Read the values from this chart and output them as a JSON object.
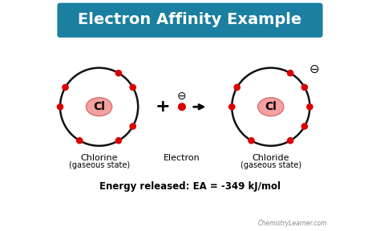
{
  "title": "Electron Affinity Example",
  "title_bg": "#1a7fa0",
  "title_color": "#ffffff",
  "bg_color": "#ffffff",
  "atom_nucleus_color": "#f4a0a0",
  "atom_nucleus_edge": "#d06060",
  "electron_color": "#dd0000",
  "orbit_color": "#111111",
  "label_chlorine": "Chlorine",
  "label_chlorine_sub": "(gaseous state)",
  "label_electron": "Electron",
  "label_chloride": "Chloride",
  "label_chloride_sub": "(gaseous state)",
  "label_cl": "Cl",
  "energy_label": "Energy released: EA = -349 kJ/mol",
  "watermark": "ChemistryLearner.com",
  "plus_symbol": "+",
  "minus_symbol": "⊖",
  "arrow_symbol": "→"
}
